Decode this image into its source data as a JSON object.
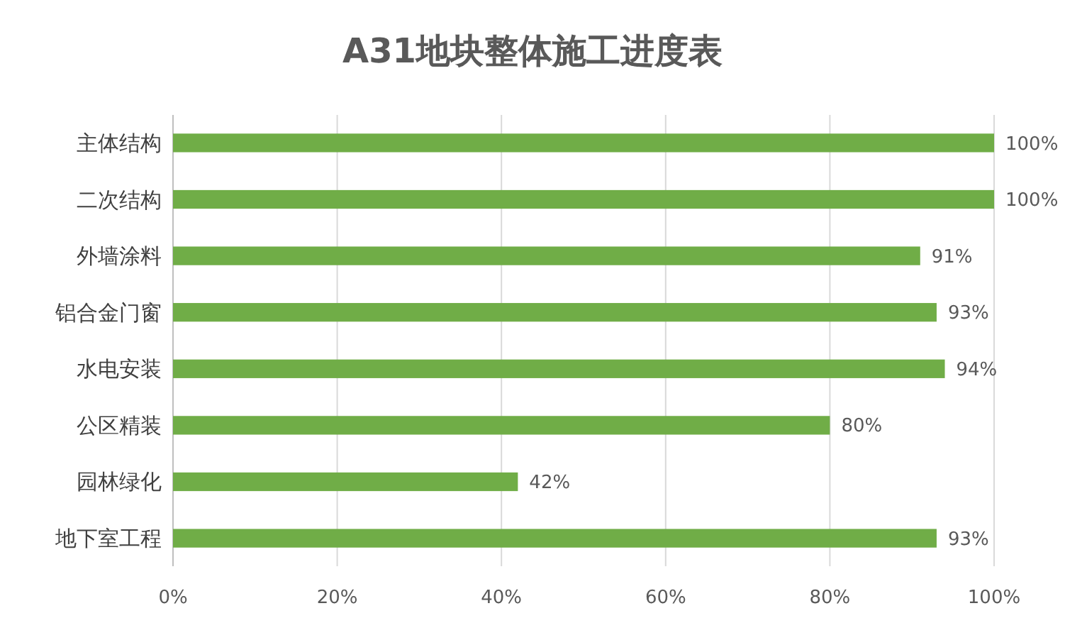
{
  "chart_data": {
    "type": "bar",
    "orientation": "horizontal",
    "title": "A31地块整体施工进度表",
    "categories": [
      "主体结构",
      "二次结构",
      "外墙涂料",
      "铝合金门窗",
      "水电安装",
      "公区精装",
      "园林绿化",
      "地下室工程"
    ],
    "values": [
      100,
      100,
      91,
      93,
      94,
      80,
      42,
      93
    ],
    "value_labels": [
      "100%",
      "100%",
      "91%",
      "93%",
      "94%",
      "80%",
      "42%",
      "93%"
    ],
    "color": "#70ad47",
    "xlim": [
      0,
      100
    ],
    "xticks": [
      {
        "value": 0,
        "label": "0%"
      },
      {
        "value": 20,
        "label": "20%"
      },
      {
        "value": 40,
        "label": "40%"
      },
      {
        "value": 60,
        "label": "60%"
      },
      {
        "value": 80,
        "label": "80%"
      },
      {
        "value": 100,
        "label": "100%"
      }
    ],
    "grid": "x"
  }
}
